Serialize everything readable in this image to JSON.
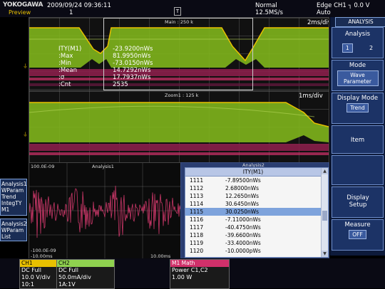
{
  "header": {
    "logo": "YOKOGAWA",
    "mode": "Preview",
    "datetime": "2009/09/24 09:36:11",
    "count": "1",
    "trigger_mode": "Normal",
    "sample_rate": "12.5MS/s",
    "trigger_source": "Edge CH1",
    "trigger_level": "0.0 V",
    "trigger_auto": "Auto",
    "trigger_marker": "T"
  },
  "main_window": {
    "title": "Main : 250 k",
    "time_div": "2ms/div"
  },
  "zoom_window": {
    "title": "Zoom1 : 125 k",
    "time_div": "1ms/div"
  },
  "measurement": {
    "name": "ITY(M1)",
    "value": "-23.9200nWs",
    "rows": [
      {
        "label": ":Max",
        "value": "81.9950nWs"
      },
      {
        "label": ":Min",
        "value": "-73.0150nWs"
      },
      {
        "label": ":Mean",
        "value": "14.7292nWs"
      },
      {
        "label": ":σ",
        "value": "17.7937nWs"
      },
      {
        "label": ":Cnt",
        "value": "2535"
      }
    ]
  },
  "analysis_plot": {
    "title": "Analysis1",
    "y_top": "100.0E-09",
    "y_bottom": "-100.0E-09",
    "x_left": "-10.00ms",
    "x_right": "10.00ms"
  },
  "list_window": {
    "title": "Analysis2",
    "header": "ITY(M1)",
    "rows": [
      {
        "idx": "1111",
        "val": "-7.89500nWs"
      },
      {
        "idx": "1112",
        "val": "2.68000nWs"
      },
      {
        "idx": "1113",
        "val": "12.2650nWs"
      },
      {
        "idx": "1114",
        "val": "30.6450nWs"
      },
      {
        "idx": "1115",
        "val": "30.0250nWs"
      },
      {
        "idx": "1116",
        "val": "-7.11000nWs"
      },
      {
        "idx": "1117",
        "val": "-40.4750nWs"
      },
      {
        "idx": "1118",
        "val": "-39.6600nWs"
      },
      {
        "idx": "1119",
        "val": "-33.4000nWs"
      },
      {
        "idx": "1120",
        "val": "-10.0000pWs"
      }
    ],
    "selected_index": 4
  },
  "left_tabs": {
    "analysis1": [
      "Analysis1",
      "WParam",
      "Trend",
      "IntegTY",
      "M1"
    ],
    "analysis2": [
      "Analysis2",
      "WParam",
      "List"
    ]
  },
  "right_menu": {
    "title": "ANALYSIS",
    "analysis_label": "Analysis",
    "analysis_opt1": "1",
    "analysis_opt2": "2",
    "mode_label": "Mode",
    "mode_value": "Wave Parameter",
    "display_mode_label": "Display Mode",
    "display_mode_value": "Trend",
    "item_label": "Item",
    "display_setup_label": "Display Setup",
    "measure_label": "Measure",
    "measure_value": "OFF"
  },
  "channels": [
    {
      "name": "CH1",
      "line1": "DC Full",
      "line2": "10.0 V/div",
      "line3": "10:1",
      "color": "#e8c000"
    },
    {
      "name": "CH2",
      "line1": "DC Full",
      "line2": "50.0mA/div",
      "line3": "1A:1V",
      "color": "#8fd14f"
    },
    {
      "name": "M1  Math",
      "line1": "Power C1,C2",
      "line2": "1.00 W",
      "line3": "",
      "color": "#d0306a"
    }
  ],
  "colors": {
    "ch1": "#e8c000",
    "ch2": "#8fd14f",
    "math": "#d0306a"
  }
}
